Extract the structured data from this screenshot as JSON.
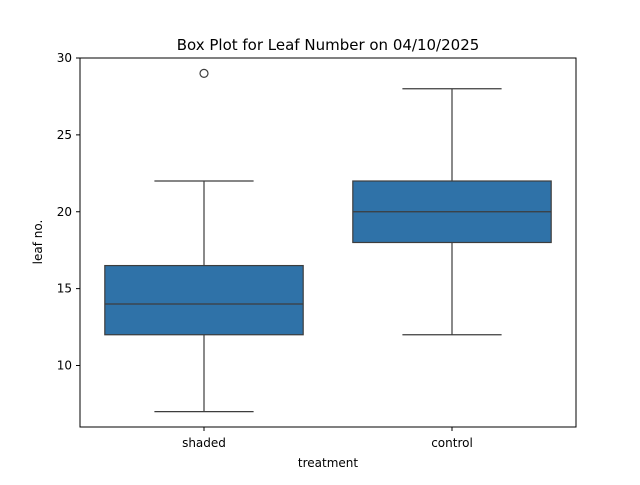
{
  "chart_data": {
    "type": "box",
    "title": "Box Plot for Leaf Number on 04/10/2025",
    "xlabel": "treatment",
    "ylabel": "leaf no.",
    "ylim": [
      6,
      30
    ],
    "yticks": [
      10,
      15,
      20,
      25,
      30
    ],
    "grid": false,
    "categories": [
      "shaded",
      "control"
    ],
    "boxes": [
      {
        "category": "shaded",
        "whisker_low": 7,
        "q1": 12,
        "median": 14,
        "q3": 16.5,
        "whisker_high": 22,
        "outliers": [
          29
        ]
      },
      {
        "category": "control",
        "whisker_low": 12,
        "q1": 18,
        "median": 20,
        "q3": 22,
        "whisker_high": 28,
        "outliers": []
      }
    ],
    "colors": {
      "box_fill": "#2f72a8",
      "line": "#3d3d3d"
    }
  }
}
